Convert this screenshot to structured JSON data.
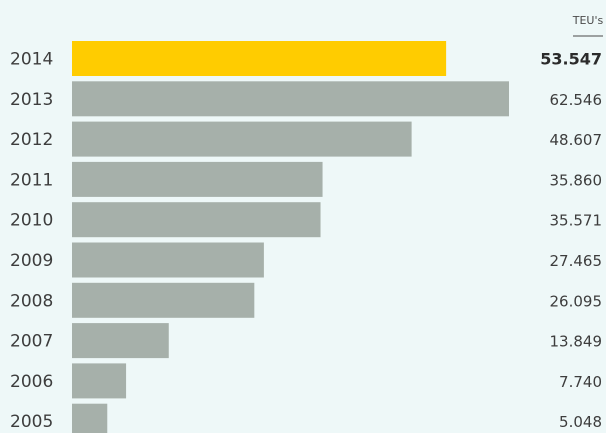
{
  "chart_data": {
    "type": "bar",
    "orientation": "horizontal",
    "unit": "TEU's",
    "categories": [
      "2014",
      "2013",
      "2012",
      "2011",
      "2010",
      "2009",
      "2008",
      "2007",
      "2006",
      "2005"
    ],
    "values": [
      53547,
      62546,
      48607,
      35860,
      35571,
      27465,
      26095,
      13849,
      7740,
      5048
    ],
    "value_labels": [
      "53.547",
      "62.546",
      "48.607",
      "35.860",
      "35.571",
      "27.465",
      "26.095",
      "13.849",
      "7.740",
      "5.048"
    ],
    "highlight_category": "2014",
    "colors": {
      "bar": "#a6b0aa",
      "highlight_bar": "#ffcc00",
      "background": "#eef8f8",
      "text": "#3d3d3d"
    },
    "title": "",
    "xlabel": "",
    "ylabel": "",
    "grid": false,
    "legend": "none"
  }
}
